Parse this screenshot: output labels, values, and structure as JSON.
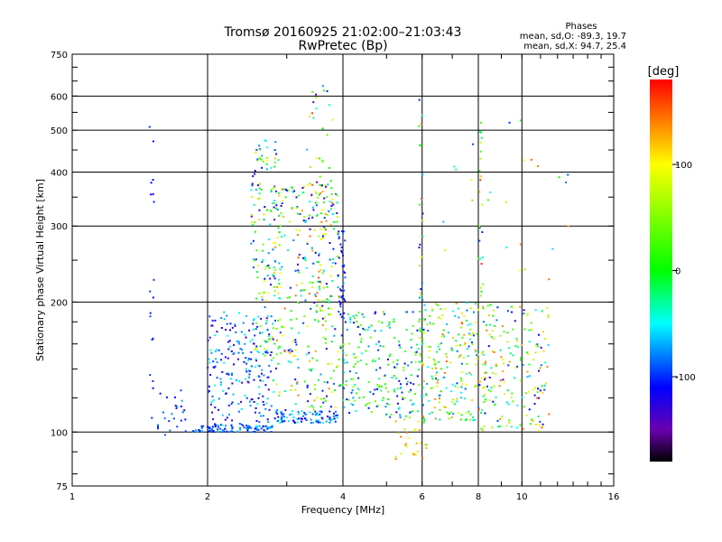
{
  "chart_data": {
    "type": "scatter",
    "title": "Tromsø 20160925 21:02:00–21:03:43",
    "subtitle": "RwPretec (Bp)",
    "xlabel": "Frequency [MHz]",
    "ylabel": "Stationary phase Virtual Height [km]",
    "x_scale": "log",
    "y_scale": "log",
    "xlim": [
      1,
      16
    ],
    "ylim": [
      75,
      750
    ],
    "x_ticks": [
      1,
      2,
      4,
      6,
      8,
      10,
      16
    ],
    "y_ticks": [
      75,
      100,
      200,
      300,
      400,
      500,
      600,
      750
    ],
    "grid": true,
    "stats": {
      "title": "Phases",
      "line_o": "mean, sd,O: -89.3, 19.7",
      "line_x": "mean, sd,X:  94.7, 25.4"
    },
    "colorbar": {
      "label": "[deg]",
      "ticks": [
        100,
        0,
        -100
      ],
      "range": [
        -180,
        180
      ],
      "stops": [
        {
          "value": -180,
          "color": "#000000"
        },
        {
          "value": -150,
          "color": "#6a00b0"
        },
        {
          "value": -110,
          "color": "#0000ff"
        },
        {
          "value": -50,
          "color": "#00ffff"
        },
        {
          "value": 0,
          "color": "#00ff00"
        },
        {
          "value": 100,
          "color": "#ffff00"
        },
        {
          "value": 140,
          "color": "#ff8000"
        },
        {
          "value": 180,
          "color": "#ff0000"
        }
      ]
    },
    "clusters": [
      {
        "x": [
          1.48,
          1.52
        ],
        "y": [
          90,
          640
        ],
        "n": 18,
        "phase": [
          -120,
          -90
        ],
        "col": true
      },
      {
        "x": [
          1.55,
          1.8
        ],
        "y": [
          95,
          125
        ],
        "n": 25,
        "phase": [
          -120,
          -70
        ]
      },
      {
        "x": [
          1.85,
          2.8
        ],
        "y": [
          100,
          104
        ],
        "n": 90,
        "phase": [
          -115,
          -60
        ]
      },
      {
        "x": [
          2.0,
          2.8
        ],
        "y": [
          102,
          190
        ],
        "n": 220,
        "phase": [
          -140,
          -40
        ]
      },
      {
        "x": [
          2.5,
          2.9
        ],
        "y": [
          150,
          480
        ],
        "n": 150,
        "phase": [
          -140,
          120
        ]
      },
      {
        "x": [
          2.8,
          3.9
        ],
        "y": [
          105,
          112
        ],
        "n": 90,
        "phase": [
          -120,
          -40
        ]
      },
      {
        "x": [
          2.8,
          3.95
        ],
        "y": [
          112,
          380
        ],
        "n": 320,
        "phase": [
          -140,
          150
        ]
      },
      {
        "x": [
          3.3,
          3.8
        ],
        "y": [
          180,
          640
        ],
        "n": 60,
        "phase": [
          -150,
          160
        ]
      },
      {
        "x": [
          3.9,
          4.05
        ],
        "y": [
          180,
          300
        ],
        "n": 40,
        "phase": [
          -130,
          -80
        ],
        "col": true
      },
      {
        "x": [
          3.95,
          6.0
        ],
        "y": [
          108,
          190
        ],
        "n": 220,
        "phase": [
          -130,
          60
        ]
      },
      {
        "x": [
          5.2,
          6.2
        ],
        "y": [
          85,
          110
        ],
        "n": 30,
        "phase": [
          60,
          150
        ]
      },
      {
        "x": [
          5.9,
          6.05
        ],
        "y": [
          150,
          610
        ],
        "n": 35,
        "phase": [
          -140,
          160
        ],
        "col": true
      },
      {
        "x": [
          6.0,
          8.0
        ],
        "y": [
          105,
          200
        ],
        "n": 200,
        "phase": [
          -100,
          150
        ]
      },
      {
        "x": [
          8.0,
          8.2
        ],
        "y": [
          100,
          590
        ],
        "n": 40,
        "phase": [
          -120,
          170
        ],
        "col": true
      },
      {
        "x": [
          8.2,
          11.5
        ],
        "y": [
          100,
          200
        ],
        "n": 180,
        "phase": [
          -130,
          150
        ]
      },
      {
        "x": [
          6.5,
          13.0
        ],
        "y": [
          220,
          580
        ],
        "n": 25,
        "phase": [
          -100,
          170
        ]
      }
    ]
  }
}
